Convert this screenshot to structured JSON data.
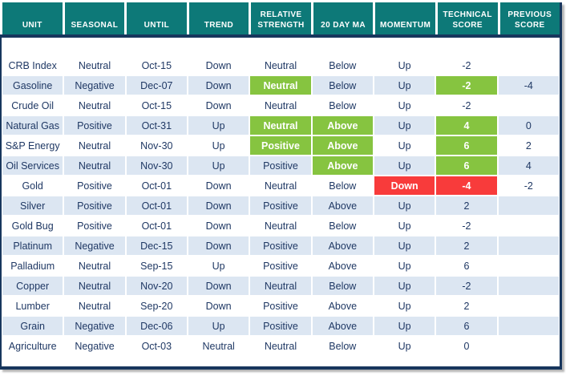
{
  "colors": {
    "header_bg": "#0d7978",
    "navy": "#17365d",
    "row_shade": "#dce6f2",
    "text": "#1f3864",
    "green": "#86c440",
    "red": "#f83b3b"
  },
  "chart_data": {
    "type": "table",
    "title": "Commodity technical score table",
    "columns": [
      "UNIT",
      "SEASONAL",
      "UNTIL",
      "TREND",
      "RELATIVE STRENGTH",
      "20 DAY MA",
      "MOMENTUM",
      "TECHNICAL SCORE",
      "PREVIOUS SCORE"
    ],
    "rows": [
      {
        "cells": [
          {
            "v": "CRB Index"
          },
          {
            "v": "Neutral"
          },
          {
            "v": "Oct-15"
          },
          {
            "v": "Down"
          },
          {
            "v": "Neutral"
          },
          {
            "v": "Below"
          },
          {
            "v": "Up"
          },
          {
            "v": "-2"
          },
          {
            "v": ""
          }
        ]
      },
      {
        "cells": [
          {
            "v": "Gasoline"
          },
          {
            "v": "Negative"
          },
          {
            "v": "Dec-07"
          },
          {
            "v": "Down"
          },
          {
            "v": "Neutral",
            "s": "green"
          },
          {
            "v": "Below"
          },
          {
            "v": "Up"
          },
          {
            "v": "-2",
            "s": "green"
          },
          {
            "v": "-4"
          }
        ]
      },
      {
        "cells": [
          {
            "v": "Crude Oil"
          },
          {
            "v": "Neutral"
          },
          {
            "v": "Oct-15"
          },
          {
            "v": "Down"
          },
          {
            "v": "Neutral"
          },
          {
            "v": "Below"
          },
          {
            "v": "Up"
          },
          {
            "v": "-2"
          },
          {
            "v": ""
          }
        ]
      },
      {
        "cells": [
          {
            "v": "Natural Gas"
          },
          {
            "v": "Positive"
          },
          {
            "v": "Oct-31"
          },
          {
            "v": "Up"
          },
          {
            "v": "Neutral",
            "s": "green"
          },
          {
            "v": "Above",
            "s": "green"
          },
          {
            "v": "Up"
          },
          {
            "v": "4",
            "s": "green"
          },
          {
            "v": "0"
          }
        ]
      },
      {
        "cells": [
          {
            "v": "S&P Energy"
          },
          {
            "v": "Neutral"
          },
          {
            "v": "Nov-30"
          },
          {
            "v": "Up"
          },
          {
            "v": "Positive",
            "s": "green"
          },
          {
            "v": "Above",
            "s": "green"
          },
          {
            "v": "Up"
          },
          {
            "v": "6",
            "s": "green"
          },
          {
            "v": "2"
          }
        ]
      },
      {
        "cells": [
          {
            "v": "Oil Services"
          },
          {
            "v": "Neutral"
          },
          {
            "v": "Nov-30"
          },
          {
            "v": "Up"
          },
          {
            "v": "Positive"
          },
          {
            "v": "Above",
            "s": "green"
          },
          {
            "v": "Up"
          },
          {
            "v": "6",
            "s": "green"
          },
          {
            "v": "4"
          }
        ]
      },
      {
        "cells": [
          {
            "v": "Gold"
          },
          {
            "v": "Positive"
          },
          {
            "v": "Oct-01"
          },
          {
            "v": "Down"
          },
          {
            "v": "Neutral"
          },
          {
            "v": "Below"
          },
          {
            "v": "Down",
            "s": "red"
          },
          {
            "v": "-4",
            "s": "red"
          },
          {
            "v": "-2"
          }
        ]
      },
      {
        "cells": [
          {
            "v": "Silver"
          },
          {
            "v": "Positive"
          },
          {
            "v": "Oct-01"
          },
          {
            "v": "Down"
          },
          {
            "v": "Positive"
          },
          {
            "v": "Above"
          },
          {
            "v": "Up"
          },
          {
            "v": "2"
          },
          {
            "v": ""
          }
        ]
      },
      {
        "cells": [
          {
            "v": "Gold Bug"
          },
          {
            "v": "Positive"
          },
          {
            "v": "Oct-01"
          },
          {
            "v": "Down"
          },
          {
            "v": "Neutral"
          },
          {
            "v": "Below"
          },
          {
            "v": "Up"
          },
          {
            "v": "-2"
          },
          {
            "v": ""
          }
        ]
      },
      {
        "cells": [
          {
            "v": "Platinum"
          },
          {
            "v": "Negative"
          },
          {
            "v": "Dec-15"
          },
          {
            "v": "Down"
          },
          {
            "v": "Positive"
          },
          {
            "v": "Above"
          },
          {
            "v": "Up"
          },
          {
            "v": "2"
          },
          {
            "v": ""
          }
        ]
      },
      {
        "cells": [
          {
            "v": "Palladium"
          },
          {
            "v": "Neutral"
          },
          {
            "v": "Sep-15"
          },
          {
            "v": "Up"
          },
          {
            "v": "Positive"
          },
          {
            "v": "Above"
          },
          {
            "v": "Up"
          },
          {
            "v": "6"
          },
          {
            "v": ""
          }
        ]
      },
      {
        "cells": [
          {
            "v": "Copper"
          },
          {
            "v": "Neutral"
          },
          {
            "v": "Nov-20"
          },
          {
            "v": "Down"
          },
          {
            "v": "Neutral"
          },
          {
            "v": "Below"
          },
          {
            "v": "Up"
          },
          {
            "v": "-2"
          },
          {
            "v": ""
          }
        ]
      },
      {
        "cells": [
          {
            "v": "Lumber"
          },
          {
            "v": "Neutral"
          },
          {
            "v": "Sep-20"
          },
          {
            "v": "Down"
          },
          {
            "v": "Positive"
          },
          {
            "v": "Above"
          },
          {
            "v": "Up"
          },
          {
            "v": "2"
          },
          {
            "v": ""
          }
        ]
      },
      {
        "cells": [
          {
            "v": "Grain"
          },
          {
            "v": "Negative"
          },
          {
            "v": "Dec-06"
          },
          {
            "v": "Up"
          },
          {
            "v": "Positive"
          },
          {
            "v": "Above"
          },
          {
            "v": "Up"
          },
          {
            "v": "6"
          },
          {
            "v": ""
          }
        ]
      },
      {
        "cells": [
          {
            "v": "Agriculture"
          },
          {
            "v": "Negative"
          },
          {
            "v": "Oct-03"
          },
          {
            "v": "Neutral"
          },
          {
            "v": "Neutral"
          },
          {
            "v": "Below"
          },
          {
            "v": "Up"
          },
          {
            "v": "0"
          },
          {
            "v": ""
          }
        ]
      }
    ],
    "cell_states_legend": {
      "green": "highlighted positive cell (white bold text on green)",
      "red": "highlighted negative cell (white bold text on red)"
    },
    "layout_hints": {
      "striping": "alternate rows shaded light blue starting with second data row",
      "header": "teal background, white bold uppercase text, bottom aligned",
      "frame": "dark navy border under header, on left, right and bottom edges, drop shadow right/bottom"
    }
  }
}
